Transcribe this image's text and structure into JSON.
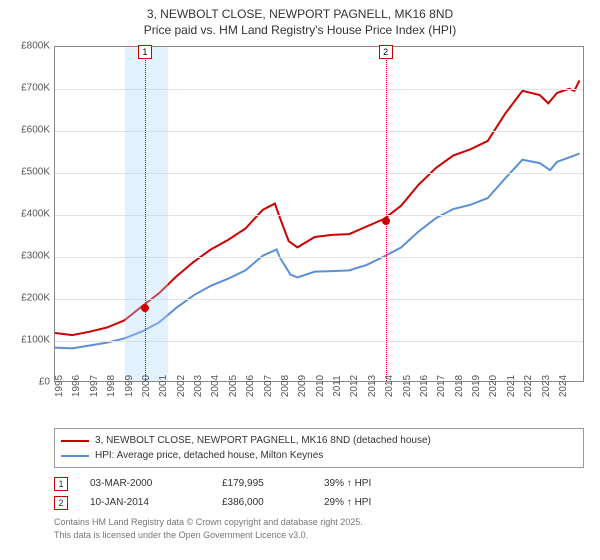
{
  "title_line1": "3, NEWBOLT CLOSE, NEWPORT PAGNELL, MK16 8ND",
  "title_line2": "Price paid vs. HM Land Registry's House Price Index (HPI)",
  "chart": {
    "type": "line",
    "background_color": "#ffffff",
    "grid_color": "#e4e4e4",
    "border_color": "#888888",
    "xlim": [
      1995,
      2025.5
    ],
    "ylim": [
      0,
      800000
    ],
    "ytick_step": 100000,
    "yticks_labels": [
      "£0",
      "£100K",
      "£200K",
      "£300K",
      "£400K",
      "£500K",
      "£600K",
      "£700K",
      "£800K"
    ],
    "xticks": [
      1995,
      1996,
      1997,
      1998,
      1999,
      2000,
      2001,
      2002,
      2003,
      2004,
      2005,
      2006,
      2007,
      2008,
      2009,
      2010,
      2011,
      2012,
      2013,
      2014,
      2015,
      2016,
      2017,
      2018,
      2019,
      2020,
      2021,
      2022,
      2023,
      2024
    ],
    "shade_band": {
      "from": 1999,
      "to": 2001.5,
      "color": "rgba(173,216,244,0.35)"
    },
    "event_lines": [
      {
        "x": 2000.17,
        "color": "#cc0000",
        "label": "1"
      },
      {
        "x": 2014.03,
        "color": "#cc0000",
        "label": "2"
      }
    ],
    "series": [
      {
        "name": "property",
        "label": "3, NEWBOLT CLOSE, NEWPORT PAGNELL, MK16 8ND (detached house)",
        "color": "#cc0000",
        "line_width": 2,
        "data": [
          [
            1995,
            115000
          ],
          [
            1996,
            110000
          ],
          [
            1997,
            118000
          ],
          [
            1998,
            128000
          ],
          [
            1999,
            145000
          ],
          [
            2000,
            178000
          ],
          [
            2001,
            210000
          ],
          [
            2002,
            250000
          ],
          [
            2003,
            285000
          ],
          [
            2004,
            315000
          ],
          [
            2005,
            338000
          ],
          [
            2006,
            365000
          ],
          [
            2007,
            410000
          ],
          [
            2007.7,
            425000
          ],
          [
            2008,
            390000
          ],
          [
            2008.5,
            335000
          ],
          [
            2009,
            320000
          ],
          [
            2010,
            345000
          ],
          [
            2011,
            350000
          ],
          [
            2012,
            352000
          ],
          [
            2013,
            370000
          ],
          [
            2014,
            388000
          ],
          [
            2015,
            420000
          ],
          [
            2016,
            470000
          ],
          [
            2017,
            510000
          ],
          [
            2018,
            540000
          ],
          [
            2019,
            555000
          ],
          [
            2020,
            575000
          ],
          [
            2021,
            640000
          ],
          [
            2022,
            695000
          ],
          [
            2023,
            685000
          ],
          [
            2023.5,
            665000
          ],
          [
            2024,
            690000
          ],
          [
            2024.7,
            700000
          ],
          [
            2025,
            695000
          ],
          [
            2025.3,
            720000
          ]
        ]
      },
      {
        "name": "hpi",
        "label": "HPI: Average price, detached house, Milton Keynes",
        "color": "#5b8fd6",
        "line_width": 2,
        "data": [
          [
            1995,
            80000
          ],
          [
            1996,
            78000
          ],
          [
            1997,
            85000
          ],
          [
            1998,
            92000
          ],
          [
            1999,
            102000
          ],
          [
            2000,
            118000
          ],
          [
            2001,
            140000
          ],
          [
            2002,
            175000
          ],
          [
            2003,
            205000
          ],
          [
            2004,
            228000
          ],
          [
            2005,
            245000
          ],
          [
            2006,
            265000
          ],
          [
            2007,
            300000
          ],
          [
            2007.8,
            315000
          ],
          [
            2008,
            295000
          ],
          [
            2008.6,
            255000
          ],
          [
            2009,
            248000
          ],
          [
            2010,
            262000
          ],
          [
            2011,
            263000
          ],
          [
            2012,
            265000
          ],
          [
            2013,
            278000
          ],
          [
            2014,
            298000
          ],
          [
            2015,
            320000
          ],
          [
            2016,
            358000
          ],
          [
            2017,
            390000
          ],
          [
            2018,
            412000
          ],
          [
            2019,
            422000
          ],
          [
            2020,
            438000
          ],
          [
            2021,
            485000
          ],
          [
            2022,
            530000
          ],
          [
            2023,
            522000
          ],
          [
            2023.6,
            505000
          ],
          [
            2024,
            525000
          ],
          [
            2025,
            540000
          ],
          [
            2025.3,
            545000
          ]
        ]
      }
    ],
    "sale_points": [
      {
        "x": 2000.17,
        "y": 179995,
        "color": "#cc0000"
      },
      {
        "x": 2014.03,
        "y": 386000,
        "color": "#cc0000"
      }
    ]
  },
  "legend": {
    "series1_label": "3, NEWBOLT CLOSE, NEWPORT PAGNELL, MK16 8ND (detached house)",
    "series1_color": "#cc0000",
    "series2_label": "HPI: Average price, detached house, Milton Keynes",
    "series2_color": "#5b8fd6"
  },
  "sales": [
    {
      "marker": "1",
      "marker_color": "#cc0000",
      "date": "03-MAR-2000",
      "price": "£179,995",
      "delta": "39% ↑ HPI"
    },
    {
      "marker": "2",
      "marker_color": "#cc0000",
      "date": "10-JAN-2014",
      "price": "£386,000",
      "delta": "29% ↑ HPI"
    }
  ],
  "footer_line1": "Contains HM Land Registry data © Crown copyright and database right 2025.",
  "footer_line2": "This data is licensed under the Open Government Licence v3.0."
}
